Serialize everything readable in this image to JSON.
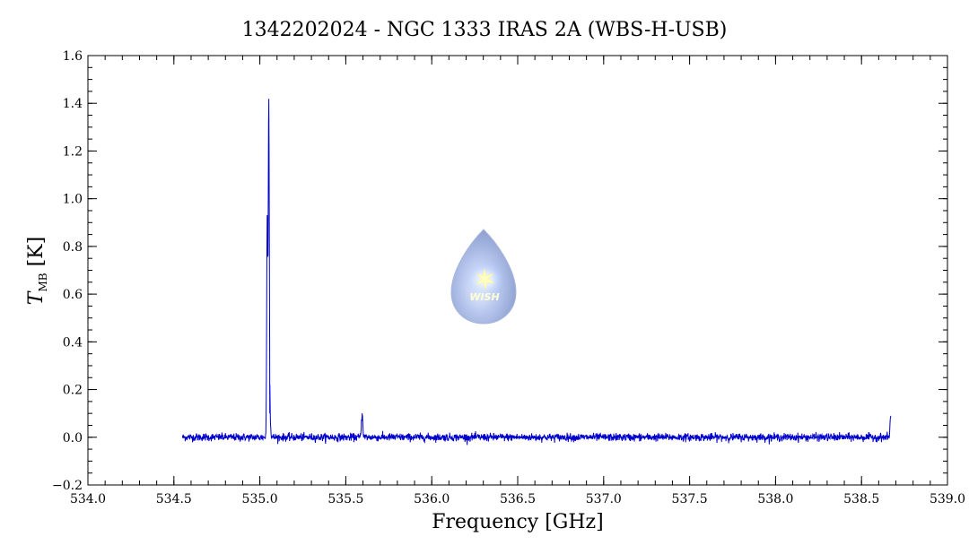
{
  "chart_data": {
    "type": "line",
    "title": "1342202024 - NGC 1333 IRAS 2A (WBS-H-USB)",
    "xlabel": "Frequency [GHz]",
    "ylabel": "T",
    "ylabel_sub": "MB",
    "ylabel_unit": " [K]",
    "xlim": [
      534.0,
      539.0
    ],
    "ylim": [
      -0.2,
      1.6
    ],
    "xticks": [
      534.0,
      534.5,
      535.0,
      535.5,
      536.0,
      536.5,
      537.0,
      537.5,
      538.0,
      538.5,
      539.0
    ],
    "xtick_labels": [
      "534.0",
      "534.5",
      "535.0",
      "535.5",
      "536.0",
      "536.5",
      "537.0",
      "537.5",
      "538.0",
      "538.5",
      "539.0"
    ],
    "yticks": [
      -0.2,
      0.0,
      0.2,
      0.4,
      0.6,
      0.8,
      1.0,
      1.2,
      1.4,
      1.6
    ],
    "ytick_labels": [
      "−0.2",
      "0.0",
      "0.2",
      "0.4",
      "0.6",
      "0.8",
      "1.0",
      "1.2",
      "1.4",
      "1.6"
    ],
    "grid": false,
    "series": [
      {
        "color": "#0000cc",
        "x_start": 534.55,
        "x_end": 538.67,
        "baseline": 0.0,
        "noise_rms": 0.008,
        "features": [
          {
            "x": 535.043,
            "peak": 0.93,
            "width": 0.003
          },
          {
            "x": 535.052,
            "peak": 1.39,
            "width": 0.003
          },
          {
            "x": 535.058,
            "peak": 0.1,
            "width": 0.004
          },
          {
            "x": 535.595,
            "peak": 0.1,
            "width": 0.004
          },
          {
            "x": 538.67,
            "peak": 0.09,
            "width": 0.004
          }
        ]
      }
    ]
  },
  "logo": {
    "text": "WISH"
  }
}
